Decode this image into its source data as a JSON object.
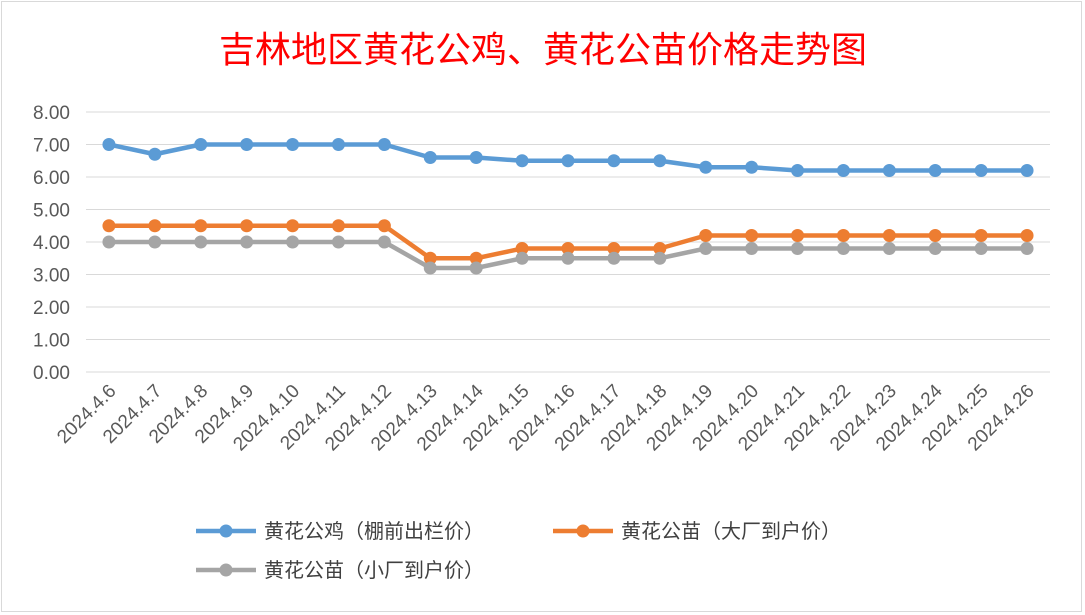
{
  "chart_data": {
    "type": "line",
    "title": "吉林地区黄花公鸡、黄花公苗价格走势图",
    "categories": [
      "2024.4.6",
      "2024.4.7",
      "2024.4.8",
      "2024.4.9",
      "2024.4.10",
      "2024.4.11",
      "2024.4.12",
      "2024.4.13",
      "2024.4.14",
      "2024.4.15",
      "2024.4.16",
      "2024.4.17",
      "2024.4.18",
      "2024.4.19",
      "2024.4.20",
      "2024.4.21",
      "2024.4.22",
      "2024.4.23",
      "2024.4.24",
      "2024.4.25",
      "2024.4.26"
    ],
    "yticks": [
      "0.00",
      "1.00",
      "2.00",
      "3.00",
      "4.00",
      "5.00",
      "6.00",
      "7.00",
      "8.00"
    ],
    "ylim": [
      0,
      8
    ],
    "grid": true,
    "legend_position": "bottom",
    "series": [
      {
        "name": "黄花公鸡（棚前出栏价）",
        "color": "#5b9bd5",
        "values": [
          7.0,
          6.7,
          7.0,
          7.0,
          7.0,
          7.0,
          7.0,
          6.6,
          6.6,
          6.5,
          6.5,
          6.5,
          6.5,
          6.3,
          6.3,
          6.2,
          6.2,
          6.2,
          6.2,
          6.2,
          6.2
        ]
      },
      {
        "name": "黄花公苗（大厂到户价）",
        "color": "#ed7d31",
        "values": [
          4.5,
          4.5,
          4.5,
          4.5,
          4.5,
          4.5,
          4.5,
          3.5,
          3.5,
          3.8,
          3.8,
          3.8,
          3.8,
          4.2,
          4.2,
          4.2,
          4.2,
          4.2,
          4.2,
          4.2,
          4.2
        ]
      },
      {
        "name": "黄花公苗（小厂到户价）",
        "color": "#a5a5a5",
        "values": [
          4.0,
          4.0,
          4.0,
          4.0,
          4.0,
          4.0,
          4.0,
          3.2,
          3.2,
          3.5,
          3.5,
          3.5,
          3.5,
          3.8,
          3.8,
          3.8,
          3.8,
          3.8,
          3.8,
          3.8,
          3.8
        ]
      }
    ]
  }
}
